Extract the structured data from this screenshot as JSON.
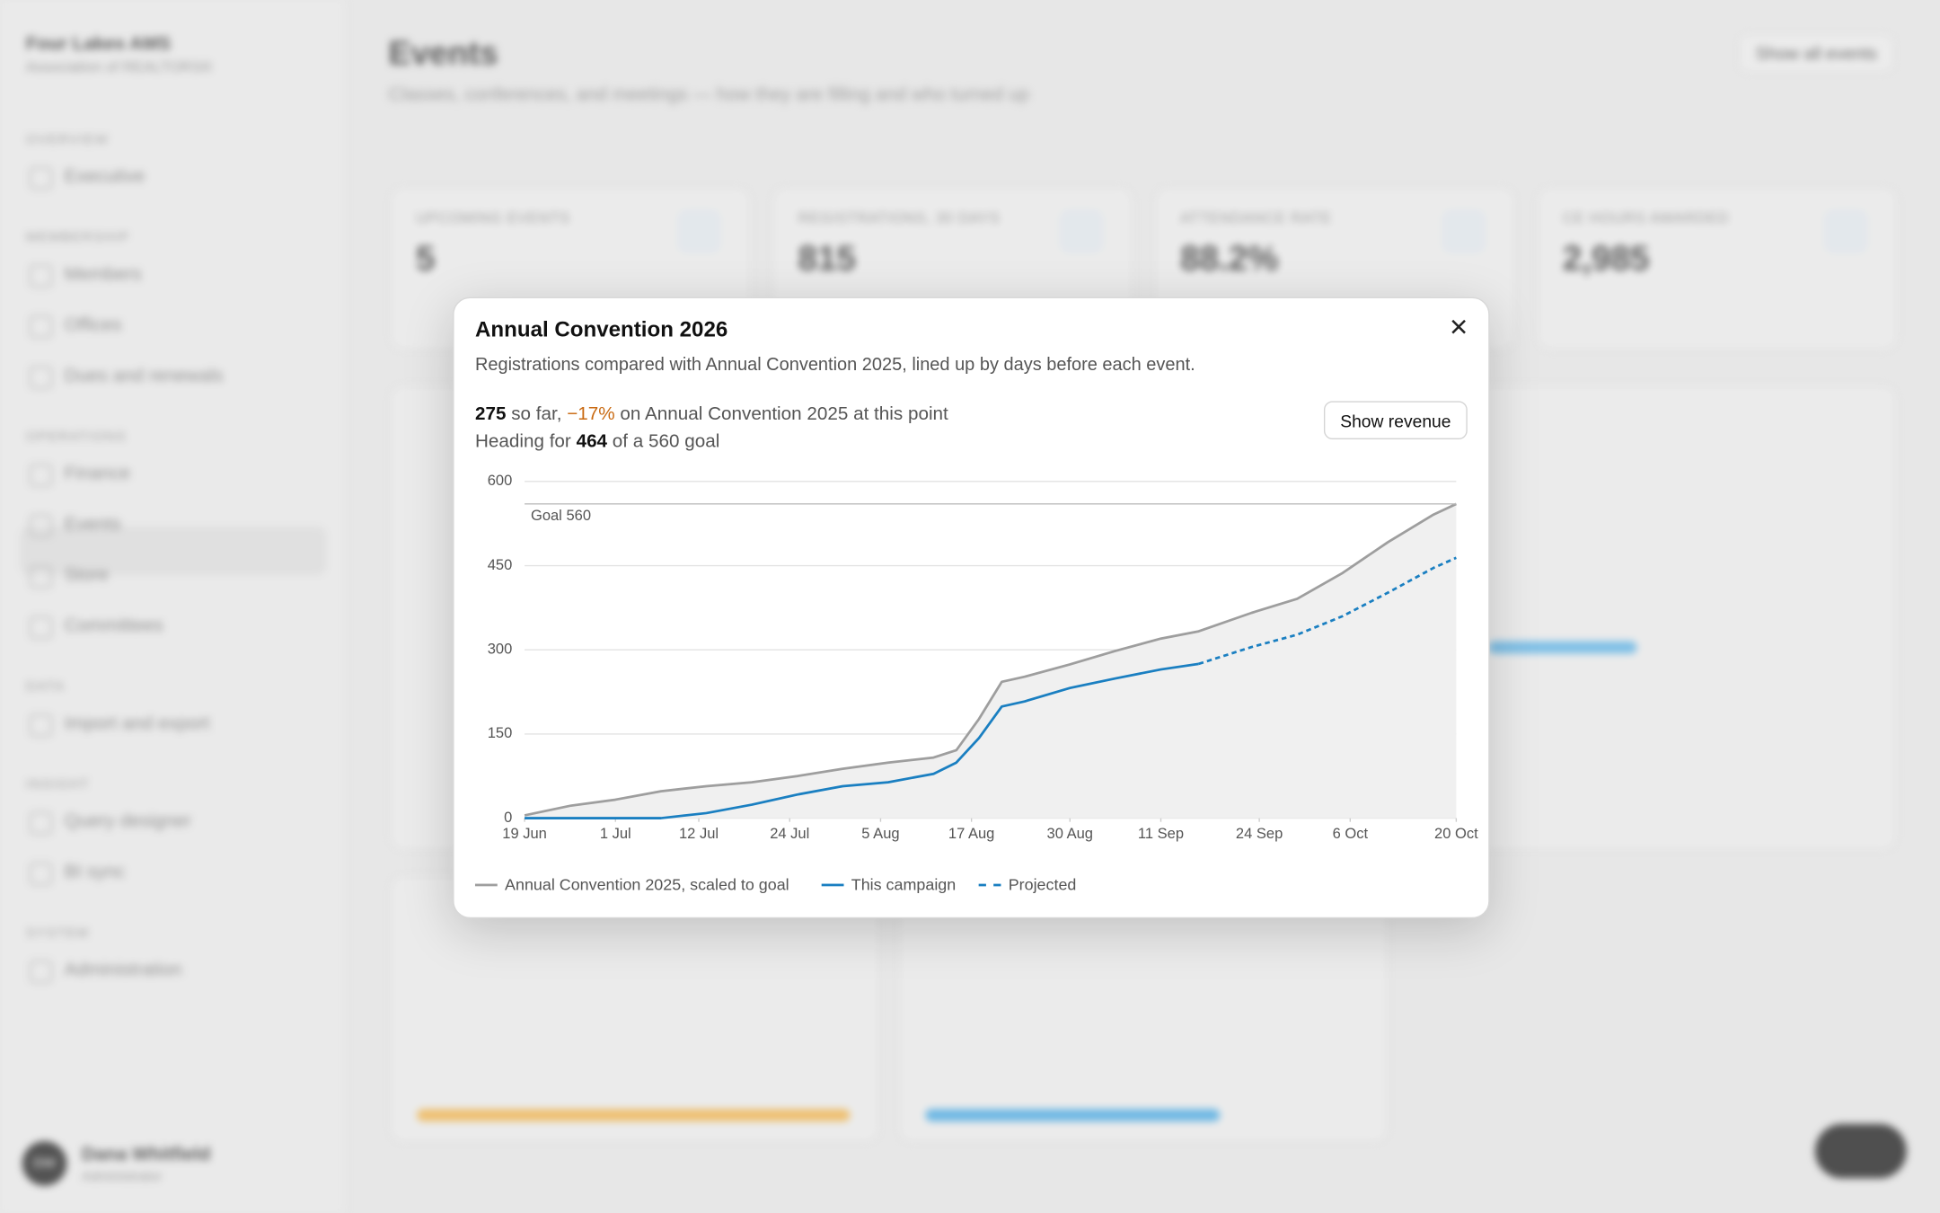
{
  "sidebar": {
    "org": "Four Lakes AMS",
    "org_sub": "Association of REALTORS®",
    "sections": [
      {
        "label": "OVERVIEW",
        "items": [
          "Executive"
        ]
      },
      {
        "label": "MEMBERSHIP",
        "items": [
          "Members",
          "Offices",
          "Dues and renewals"
        ]
      },
      {
        "label": "OPERATIONS",
        "items": [
          "Finance",
          "Events",
          "Store",
          "Committees"
        ]
      },
      {
        "label": "DATA",
        "items": [
          "Import and export"
        ]
      },
      {
        "label": "INSIGHT",
        "items": [
          "Query designer",
          "BI sync"
        ]
      },
      {
        "label": "SYSTEM",
        "items": [
          "Administration"
        ]
      }
    ],
    "user": {
      "initials": "DW",
      "name": "Dana Whitfield",
      "role": "Administrator"
    }
  },
  "header": {
    "title": "Events",
    "subtitle": "Classes, conferences, and meetings — how they are filling and who turned up",
    "action": "Show all events"
  },
  "stats": [
    {
      "label": "UPCOMING EVENTS",
      "value": "5"
    },
    {
      "label": "REGISTRATIONS, 30 DAYS",
      "value": "815"
    },
    {
      "label": "ATTENDANCE RATE",
      "value": "88.2%"
    },
    {
      "label": "CE HOURS AWARDED",
      "value": "2,985"
    }
  ],
  "modal": {
    "title": "Annual Convention 2026",
    "subtitle": "Registrations compared with Annual Convention 2025, lined up by days before each event.",
    "line1": {
      "count": "275",
      "text1": "so far,",
      "change": "−17%",
      "text2": "on Annual Convention 2025 at this point"
    },
    "line2": {
      "text1": "Heading for",
      "projected": "464",
      "text2": "of a 560 goal"
    },
    "button": "Show revenue"
  },
  "chart_data": {
    "type": "line",
    "x": [
      0,
      6,
      12,
      18,
      24,
      30,
      36,
      42,
      48,
      54,
      57,
      60,
      63,
      66,
      72,
      78,
      84,
      89,
      96,
      102,
      108,
      114,
      120,
      123
    ],
    "xlim": [
      0,
      123
    ],
    "xticks": [
      {
        "value": 0,
        "label": "19 Jun"
      },
      {
        "value": 12,
        "label": "1 Jul"
      },
      {
        "value": 23,
        "label": "12 Jul"
      },
      {
        "value": 35,
        "label": "24 Jul"
      },
      {
        "value": 47,
        "label": "5 Aug"
      },
      {
        "value": 59,
        "label": "17 Aug"
      },
      {
        "value": 72,
        "label": "30 Aug"
      },
      {
        "value": 84,
        "label": "11 Sep"
      },
      {
        "value": 97,
        "label": "24 Sep"
      },
      {
        "value": 109,
        "label": "6 Oct"
      },
      {
        "value": 123,
        "label": "20 Oct"
      }
    ],
    "ylim": [
      0,
      600
    ],
    "yticks": [
      0,
      150,
      300,
      450,
      600
    ],
    "grid": true,
    "goal": {
      "value": 560,
      "label": "Goal 560"
    },
    "series": [
      {
        "name": "Annual Convention 2025, scaled to goal",
        "color": "#9e9e9e",
        "style": "solid",
        "area": "#f0f0f0",
        "values": [
          5,
          22,
          33,
          48,
          57,
          64,
          75,
          88,
          99,
          108,
          121,
          177,
          243,
          252,
          274,
          298,
          320,
          333,
          366,
          391,
          437,
          492,
          541,
          560
        ]
      },
      {
        "name": "This campaign",
        "color": "#1a7fc1",
        "style": "solid",
        "values": [
          0,
          0,
          0,
          0,
          9,
          24,
          42,
          57,
          64,
          79,
          99,
          143,
          199,
          208,
          232,
          249,
          265,
          275,
          null,
          null,
          null,
          null,
          null,
          null
        ]
      },
      {
        "name": "Projected",
        "color": "#1a7fc1",
        "style": "dashed",
        "values": [
          null,
          null,
          null,
          null,
          null,
          null,
          null,
          null,
          null,
          null,
          null,
          null,
          null,
          null,
          null,
          null,
          null,
          275,
          305,
          327,
          360,
          402,
          446,
          464
        ]
      }
    ]
  }
}
